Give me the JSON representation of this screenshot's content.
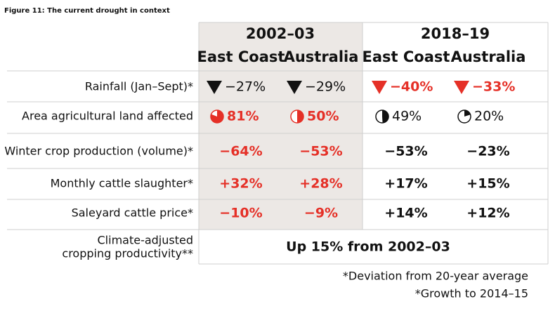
{
  "title": "Figure 11: The current drought in context",
  "table": {
    "periods": [
      "2002–03",
      "2018–19"
    ],
    "columns": [
      "East Coast",
      "Australia",
      "East Coast",
      "Australia"
    ],
    "rows": [
      {
        "label": "Rainfall (Jan–Sept)*",
        "cells": [
          "−27%",
          "−29%",
          "−40%",
          "−33%"
        ]
      },
      {
        "label": "Area agricultural land affected",
        "cells": [
          "81%",
          "50%",
          "49%",
          "20%"
        ]
      },
      {
        "label": "Winter crop production (volume)*",
        "cells": [
          "−64%",
          "−53%",
          "−53%",
          "−23%"
        ]
      },
      {
        "label": "Monthly cattle slaughter*",
        "cells": [
          "+32%",
          "+28%",
          "+17%",
          "+15%"
        ]
      },
      {
        "label": "Saleyard cattle price*",
        "cells": [
          "−10%",
          "−9%",
          "+14%",
          "+12%"
        ]
      }
    ],
    "summary": {
      "label": [
        "Climate-adjusted",
        "cropping productivity**"
      ],
      "text": "Up 15% from 2002–03"
    }
  },
  "footnotes": [
    "*Deviation from 20-year average",
    "*Growth to 2014–15"
  ]
}
